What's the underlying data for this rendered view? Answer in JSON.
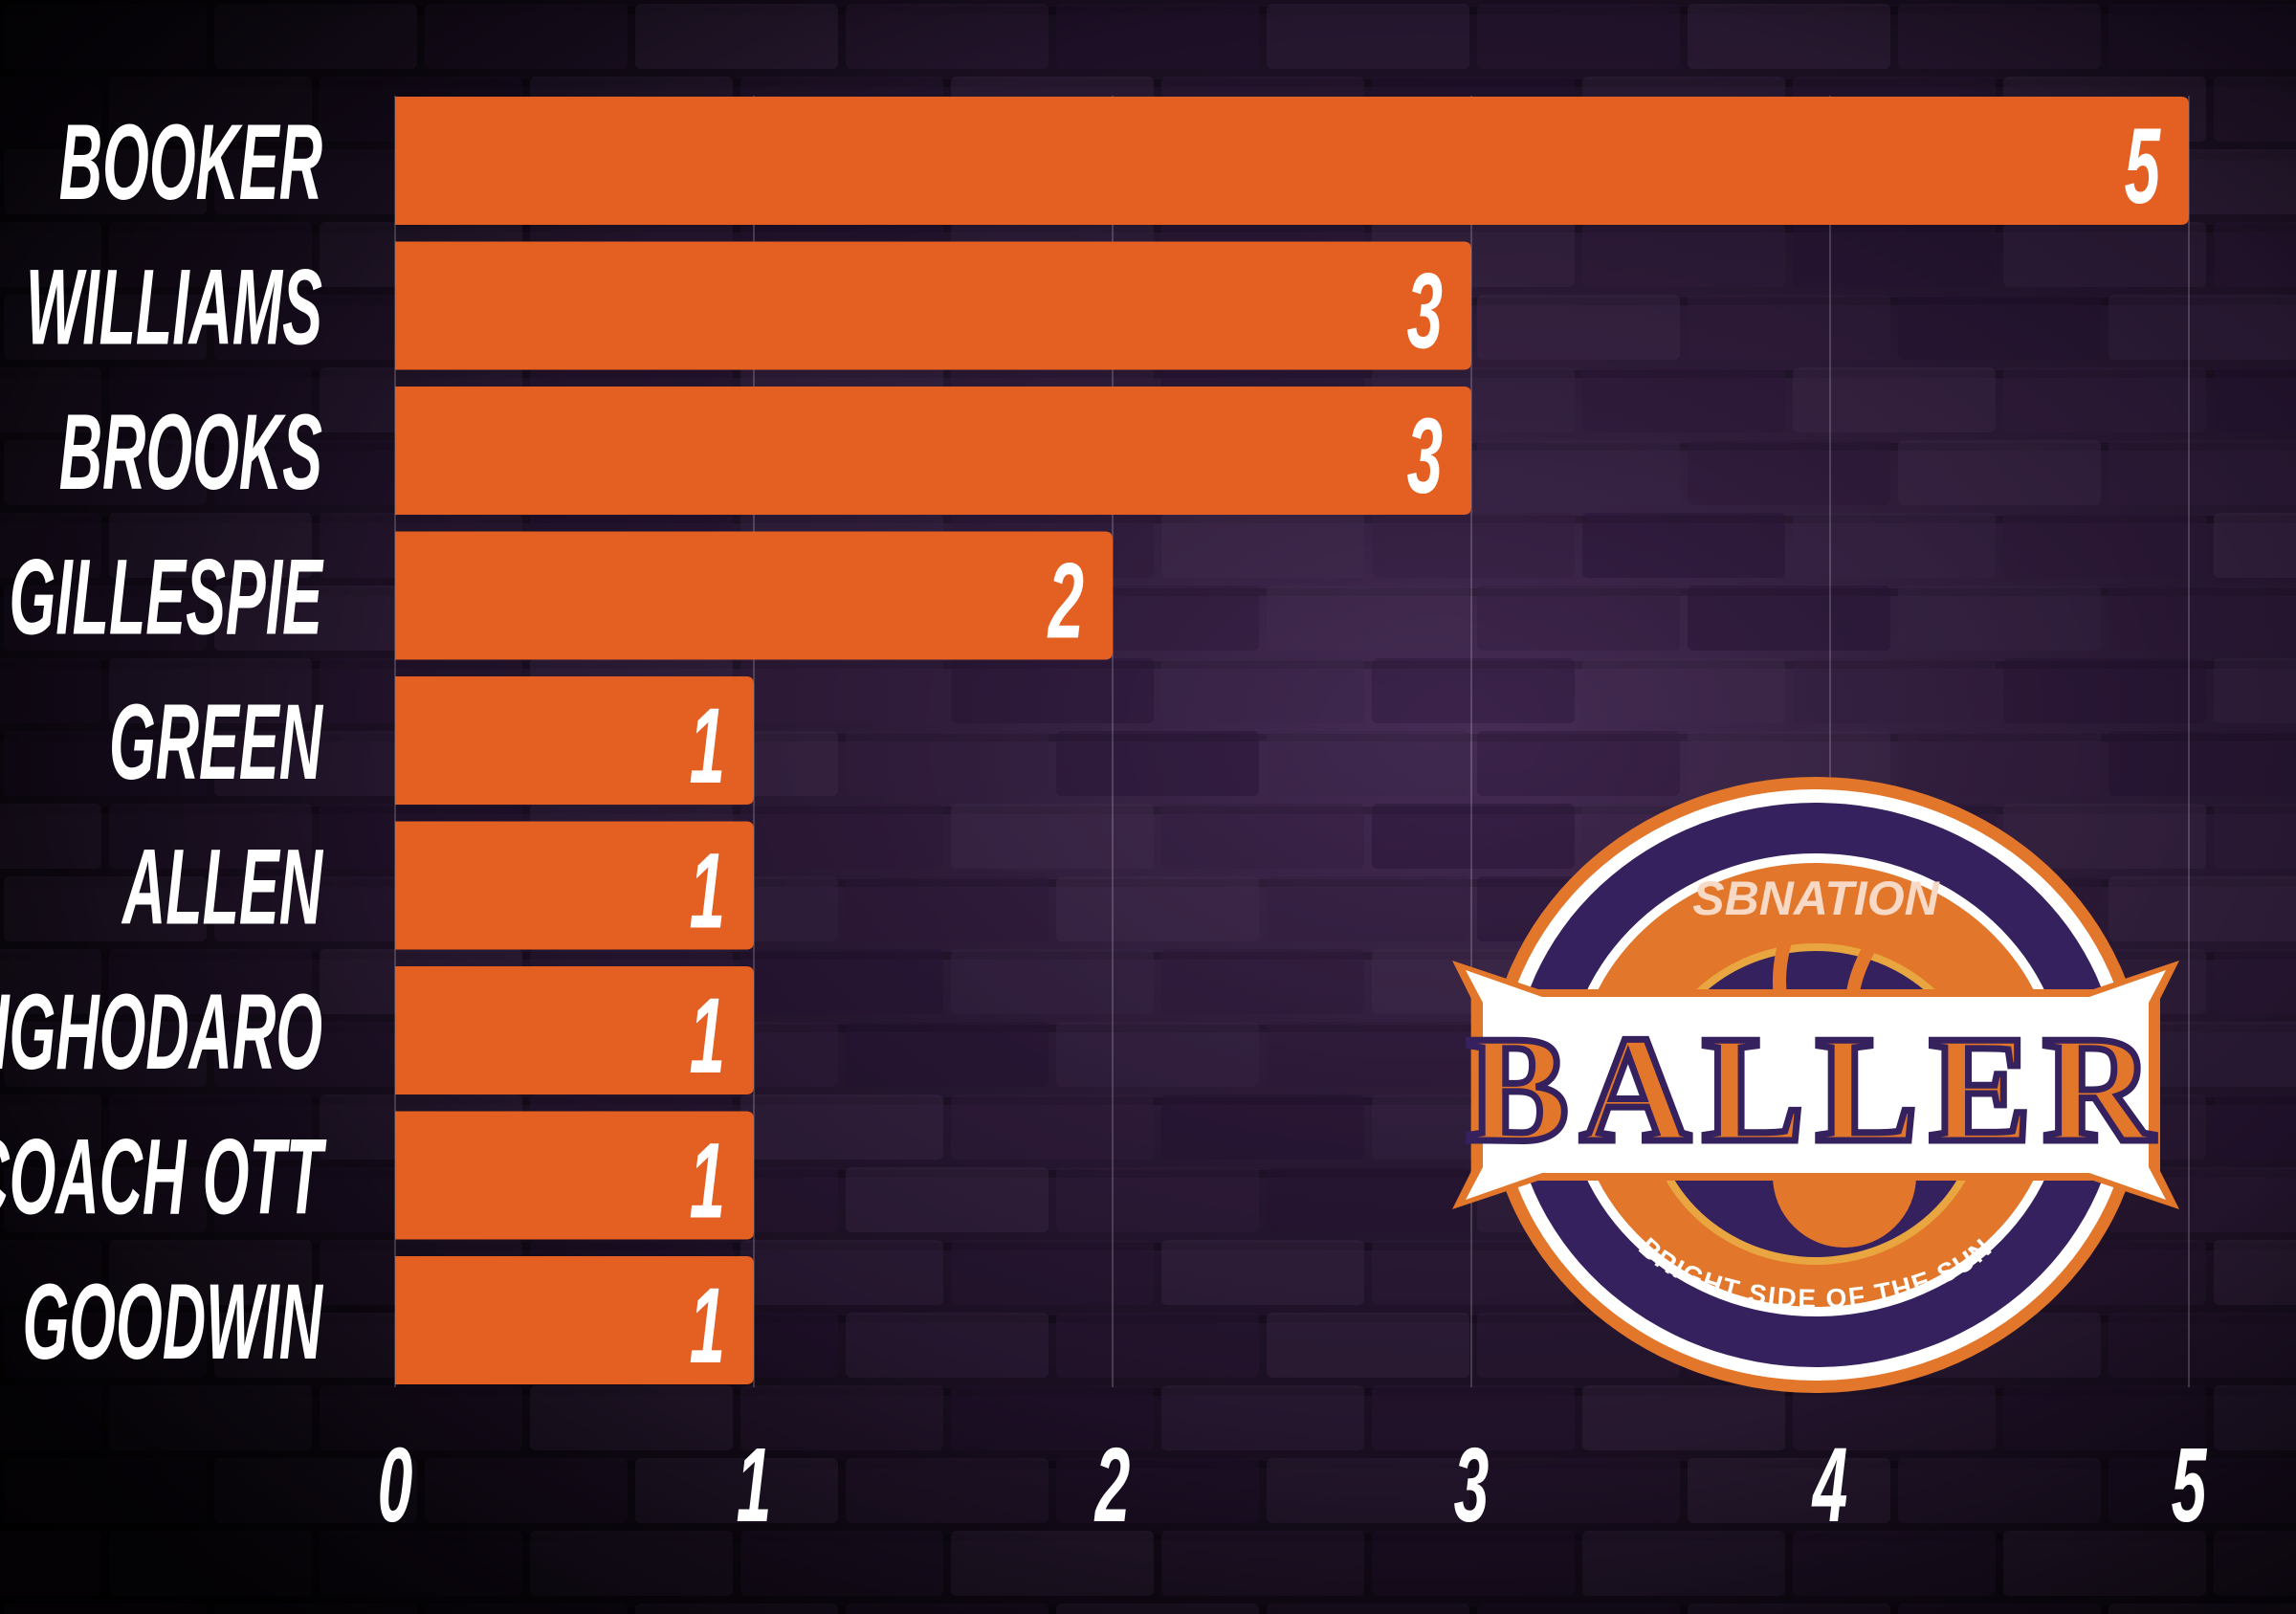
{
  "chart_data": {
    "type": "bar",
    "orientation": "horizontal",
    "categories": [
      "BOOKER",
      "WILLIAMS",
      "BROOKS",
      "GILLESPIE",
      "GREEN",
      "ALLEN",
      "IGHODARO",
      "COACH OTT",
      "GOODWIN"
    ],
    "values": [
      5,
      3,
      3,
      2,
      1,
      1,
      1,
      1,
      1
    ],
    "title": "",
    "xlabel": "",
    "ylabel": "",
    "xlim": [
      0,
      5
    ],
    "x_ticks": [
      "0",
      "1",
      "2",
      "3",
      "4",
      "5"
    ],
    "grid": true,
    "bar_color": "#e35f22",
    "label_color": "#ffffff",
    "background": "purple brick wall"
  },
  "logo": {
    "top_text": "SBNATION",
    "main_text": "BALLER",
    "bottom_text": "BRIGHT SIDE OF THE SUN",
    "colors": {
      "orange": "#e2762a",
      "purple": "#35215e",
      "white": "#ffffff"
    }
  }
}
